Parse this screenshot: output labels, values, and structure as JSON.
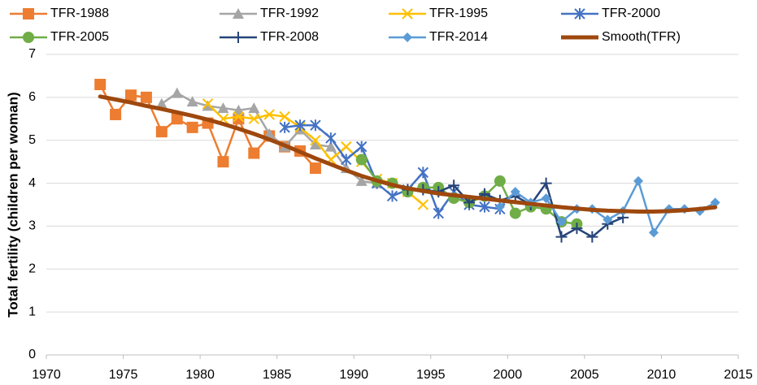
{
  "chart_data": {
    "type": "line",
    "y_label": "Total fertility (children per woman)",
    "xlim": [
      1970,
      2015
    ],
    "xticks": [
      1970,
      1975,
      1980,
      1985,
      1990,
      1995,
      2000,
      2005,
      2010,
      2015
    ],
    "ylim": [
      0,
      7
    ],
    "yticks": [
      0,
      1,
      2,
      3,
      4,
      5,
      6,
      7
    ],
    "grid": true,
    "series": [
      {
        "name": "TFR-1988",
        "color": "#ed7d31",
        "marker": "square",
        "line_width": 2.5,
        "x": [
          1973.5,
          1974.5,
          1975.5,
          1976.5,
          1977.5,
          1978.5,
          1979.5,
          1980.5,
          1981.5,
          1982.5,
          1983.5,
          1984.5,
          1985.5,
          1986.5,
          1987.5
        ],
        "values": [
          6.3,
          5.6,
          6.05,
          6.0,
          5.2,
          5.5,
          5.3,
          5.4,
          4.5,
          5.5,
          4.7,
          5.1,
          4.85,
          4.75,
          4.35
        ]
      },
      {
        "name": "TFR-1992",
        "color": "#a5a5a5",
        "marker": "triangle",
        "line_width": 2.5,
        "x": [
          1977.5,
          1978.5,
          1979.5,
          1980.5,
          1981.5,
          1982.5,
          1983.5,
          1984.5,
          1985.5,
          1986.5,
          1987.5,
          1988.5,
          1989.5,
          1990.5,
          1991.5
        ],
        "values": [
          5.85,
          6.1,
          5.9,
          5.8,
          5.75,
          5.7,
          5.75,
          5.15,
          4.85,
          5.25,
          4.9,
          4.85,
          4.35,
          4.05,
          4.0
        ]
      },
      {
        "name": "TFR-1995",
        "color": "#ffc000",
        "marker": "x",
        "line_width": 2.5,
        "x": [
          1980.5,
          1981.5,
          1982.5,
          1983.5,
          1984.5,
          1985.5,
          1986.5,
          1987.5,
          1988.5,
          1989.5,
          1990.5,
          1991.5,
          1992.5,
          1993.5,
          1994.5
        ],
        "values": [
          5.85,
          5.5,
          5.55,
          5.5,
          5.6,
          5.55,
          5.3,
          5.0,
          4.55,
          4.85,
          4.5,
          4.1,
          4.0,
          3.8,
          3.5
        ]
      },
      {
        "name": "TFR-2000",
        "color": "#4472c4",
        "marker": "asterisk",
        "line_width": 2.5,
        "x": [
          1985.5,
          1986.5,
          1987.5,
          1988.5,
          1989.5,
          1990.5,
          1991.5,
          1992.5,
          1993.5,
          1994.5,
          1995.5,
          1996.5,
          1997.5,
          1998.5,
          1999.5
        ],
        "values": [
          5.3,
          5.35,
          5.35,
          5.05,
          4.55,
          4.85,
          4.0,
          3.7,
          3.85,
          4.25,
          3.3,
          3.8,
          3.5,
          3.45,
          3.4
        ]
      },
      {
        "name": "TFR-2005",
        "color": "#70ad47",
        "marker": "circle",
        "line_width": 2.5,
        "x": [
          1990.5,
          1991.5,
          1992.5,
          1993.5,
          1994.5,
          1995.5,
          1996.5,
          1997.5,
          1998.5,
          1999.5,
          2000.5,
          2001.5,
          2002.5,
          2003.5,
          2004.5
        ],
        "values": [
          4.55,
          4.05,
          4.0,
          3.8,
          3.9,
          3.9,
          3.65,
          3.55,
          3.7,
          4.05,
          3.3,
          3.45,
          3.4,
          3.1,
          3.05
        ]
      },
      {
        "name": "TFR-2008",
        "color": "#264478",
        "marker": "plus",
        "line_width": 2.5,
        "x": [
          1993.5,
          1994.5,
          1995.5,
          1996.5,
          1997.5,
          1998.5,
          1999.5,
          2000.5,
          2001.5,
          2002.5,
          2003.5,
          2004.5,
          2005.5,
          2006.5,
          2007.5
        ],
        "values": [
          3.85,
          3.85,
          3.8,
          3.95,
          3.55,
          3.75,
          3.6,
          3.7,
          3.5,
          4.0,
          2.75,
          2.95,
          2.75,
          3.05,
          3.2
        ]
      },
      {
        "name": "TFR-2014",
        "color": "#5b9bd5",
        "marker": "diamond",
        "line_width": 2.5,
        "x": [
          1999.5,
          2000.5,
          2001.5,
          2002.5,
          2003.5,
          2004.5,
          2005.5,
          2006.5,
          2007.5,
          2008.5,
          2009.5,
          2010.5,
          2011.5,
          2012.5,
          2013.5
        ],
        "values": [
          3.45,
          3.8,
          3.55,
          3.65,
          3.1,
          3.4,
          3.4,
          3.15,
          3.35,
          4.05,
          2.85,
          3.4,
          3.4,
          3.35,
          3.55
        ]
      },
      {
        "name": "Smooth(TFR)",
        "color": "#9e480e",
        "marker": "none",
        "line_width": 5,
        "x": [
          1973.5,
          1974.5,
          1975.5,
          1976.5,
          1977.5,
          1978.5,
          1979.5,
          1980.5,
          1981.5,
          1982.5,
          1983.5,
          1984.5,
          1985.5,
          1986.5,
          1987.5,
          1988.5,
          1989.5,
          1990.5,
          1991.5,
          1992.5,
          1993.5,
          1994.5,
          1995.5,
          1996.5,
          1997.5,
          1998.5,
          1999.5,
          2000.5,
          2001.5,
          2002.5,
          2003.5,
          2004.5,
          2005.5,
          2006.5,
          2007.5,
          2008.5,
          2009.5,
          2010.5,
          2011.5,
          2012.5,
          2013.5
        ],
        "values": [
          6.02,
          5.95,
          5.88,
          5.8,
          5.73,
          5.65,
          5.57,
          5.48,
          5.38,
          5.27,
          5.15,
          5.02,
          4.88,
          4.73,
          4.58,
          4.44,
          4.3,
          4.17,
          4.06,
          3.96,
          3.88,
          3.82,
          3.76,
          3.72,
          3.68,
          3.64,
          3.6,
          3.56,
          3.52,
          3.48,
          3.44,
          3.41,
          3.38,
          3.36,
          3.35,
          3.34,
          3.34,
          3.35,
          3.37,
          3.4,
          3.44
        ]
      }
    ]
  }
}
